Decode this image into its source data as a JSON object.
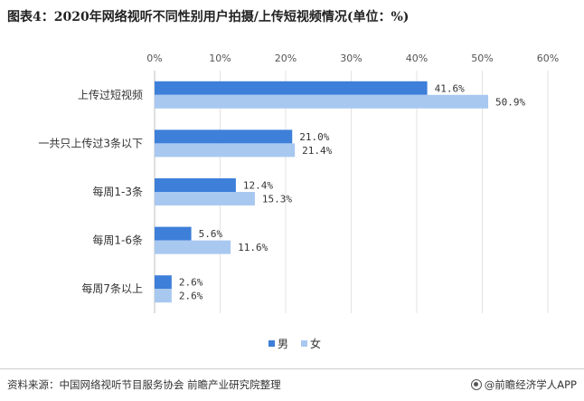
{
  "chart_data": {
    "type": "bar",
    "orientation": "horizontal",
    "title": "图表4：2020年网络视听不同性别用户拍摄/上传短视频情况(单位：%)",
    "categories": [
      "上传过短视频",
      "一共只上传过3条以下",
      "每周1-3条",
      "每周1-6条",
      "每周7条以上"
    ],
    "series": [
      {
        "name": "男",
        "values": [
          41.6,
          21.0,
          12.4,
          5.6,
          2.6
        ],
        "labels": [
          "41.6%",
          "21.0%",
          "12.4%",
          "5.6%",
          "2.6%"
        ]
      },
      {
        "name": "女",
        "values": [
          50.9,
          21.4,
          15.3,
          11.6,
          2.6
        ],
        "labels": [
          "50.9%",
          "21.4%",
          "15.3%",
          "11.6%",
          "2.6%"
        ]
      }
    ],
    "xlim": [
      0,
      60
    ],
    "xticks": [
      "0%",
      "10%",
      "20%",
      "30%",
      "40%",
      "50%",
      "60%"
    ],
    "xaxis_position": "top",
    "grid": true,
    "legend_position": "bottom",
    "colors": [
      "#3d7fd9",
      "#a8c8f0"
    ]
  },
  "footer": {
    "source": "资料来源：中国网络视听节目服务协会 前瞻产业研究院整理",
    "brand": "@前瞻经济学人APP"
  }
}
